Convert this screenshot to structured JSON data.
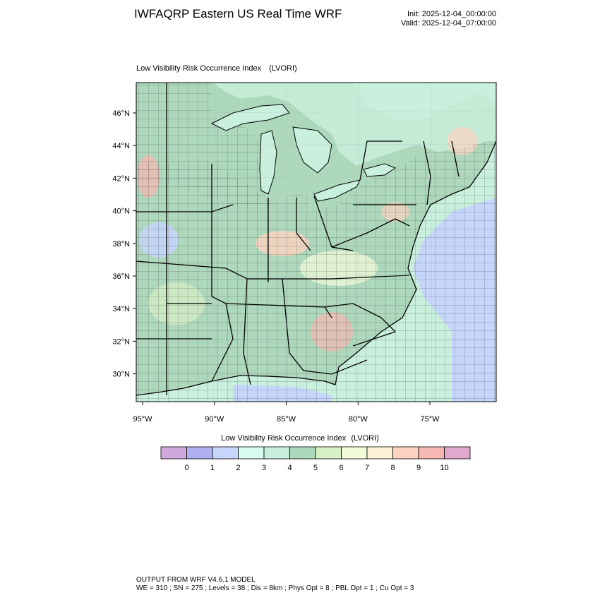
{
  "title": "IWFAQRP Eastern US Real Time WRF",
  "init_time": "Init: 2025-12-04_00:00:00",
  "valid_time": "Valid: 2025-12-04_07:00:00",
  "map": {
    "field_name": "Low Visibility Risk Occurrence Index",
    "field_units": "(LVORI)",
    "lat_ticks": [
      {
        "label": "46°N",
        "value": 46
      },
      {
        "label": "44°N",
        "value": 44
      },
      {
        "label": "42°N",
        "value": 42
      },
      {
        "label": "40°N",
        "value": 40
      },
      {
        "label": "38°N",
        "value": 38
      },
      {
        "label": "36°N",
        "value": 36
      },
      {
        "label": "34°N",
        "value": 34
      },
      {
        "label": "32°N",
        "value": 32
      },
      {
        "label": "30°N",
        "value": 30
      }
    ],
    "lon_ticks": [
      {
        "label": "95°W",
        "value": -95
      },
      {
        "label": "90°W",
        "value": -90
      },
      {
        "label": "85°W",
        "value": -85
      },
      {
        "label": "80°W",
        "value": -80
      },
      {
        "label": "75°W",
        "value": -75
      }
    ],
    "colors": {
      "ocean_low": "#cbd8fb",
      "land_dominant": "#aed8bb",
      "coastal_water": "#c8f0dc",
      "borders": "#000000"
    }
  },
  "colorbar": {
    "title": "Low Visibility Risk Occurrence Index",
    "units": "(LVORI)",
    "labels": [
      "0",
      "1",
      "2",
      "3",
      "4",
      "5",
      "6",
      "7",
      "8",
      "9",
      "10"
    ],
    "colors": [
      "#cfa8dd",
      "#aeb0f0",
      "#c6d6fb",
      "#d8fbf2",
      "#c8f0dc",
      "#aed8bb",
      "#d8f0c6",
      "#f3fcd8",
      "#fef2d6",
      "#fcd3c0",
      "#f4b7b2",
      "#dfa8cc"
    ]
  },
  "footer": {
    "line1": "OUTPUT FROM WRF V4.6.1 MODEL",
    "line2": "WE = 310 ; SN = 275 ; Levels = 38 ; Dis = 8km ; Phys Opt = 8 ; PBL Opt = 1 ; Cu Opt = 3"
  }
}
